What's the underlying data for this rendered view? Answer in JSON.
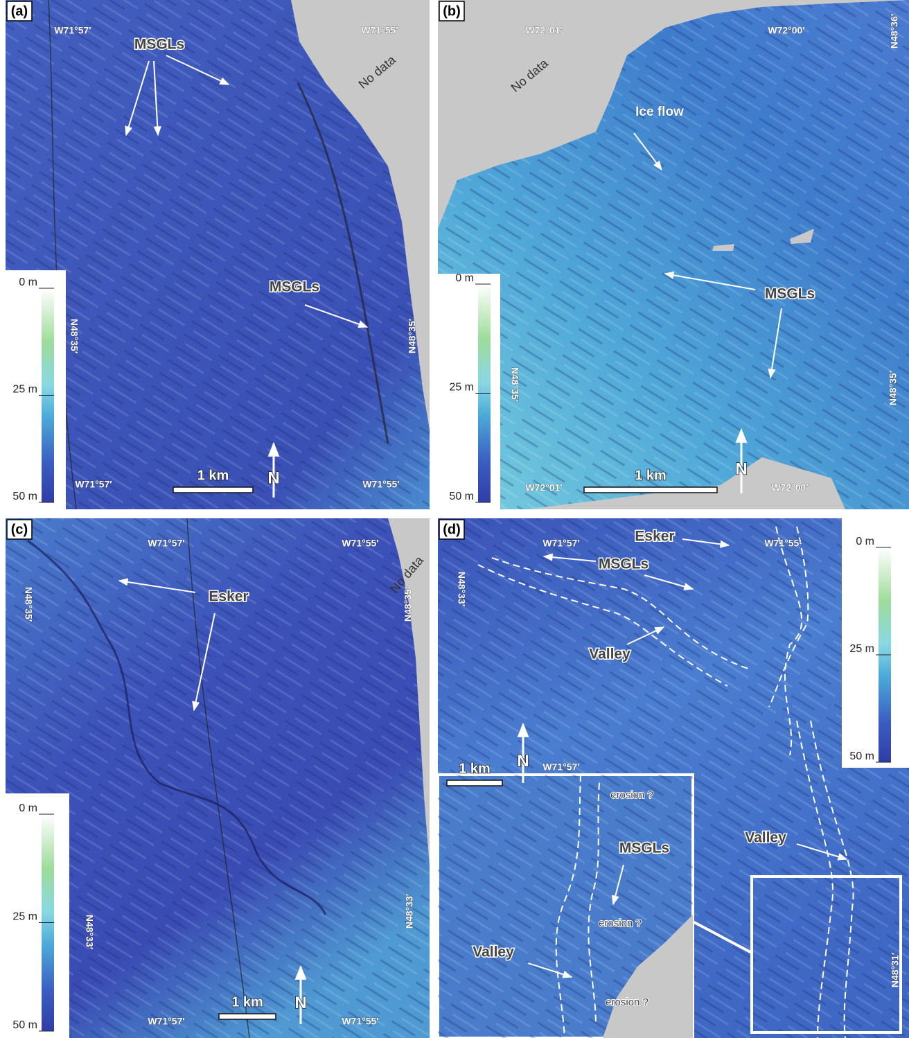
{
  "panels": [
    {
      "label": "(a)",
      "no_data": "No data",
      "coordinates": [
        "W71°57′",
        "W71°55′",
        "W71°57′",
        "W71°55′",
        "N48°35′",
        "N48°35′"
      ],
      "annotations": [
        "MSGLs",
        "MSGLs"
      ],
      "scale_bar": "1 km",
      "north": "N",
      "depth_scale": {
        "ylim": [
          0,
          50
        ],
        "ticks": [
          {
            "value": 0,
            "label": "0 m"
          },
          {
            "value": 25,
            "label": "25 m"
          },
          {
            "value": 50,
            "label": "50 m"
          }
        ]
      }
    },
    {
      "label": "(b)",
      "no_data": "No data",
      "coordinates": [
        "W72°01′",
        "W72°00′",
        "N48°36′",
        "N48°35′",
        "N48°35′",
        "W72°01′",
        "W72°00′"
      ],
      "annotations": [
        "Ice flow",
        "MSGLs"
      ],
      "scale_bar": "1 km",
      "north": "N",
      "depth_scale": {
        "ylim": [
          0,
          50
        ],
        "ticks": [
          {
            "value": 0,
            "label": "0 m"
          },
          {
            "value": 25,
            "label": "25 m"
          },
          {
            "value": 50,
            "label": "50 m"
          }
        ]
      }
    },
    {
      "label": "(c)",
      "no_data": "No data",
      "coordinates": [
        "W71°57′",
        "W71°55′",
        "N48°35′",
        "N48°35′",
        "N48°33′",
        "N48°33′",
        "W71°57′",
        "W71°55′"
      ],
      "annotations": [
        "Esker"
      ],
      "scale_bar": "1 km",
      "north": "N",
      "depth_scale": {
        "ylim": [
          0,
          50
        ],
        "ticks": [
          {
            "value": 0,
            "label": "0 m"
          },
          {
            "value": 25,
            "label": "25 m"
          },
          {
            "value": 50,
            "label": "50 m"
          }
        ]
      }
    },
    {
      "label": "(d)",
      "coordinates": [
        "W71°57′",
        "W71°55′",
        "N48°33′",
        "W71°57′",
        "N48°31′"
      ],
      "annotations": [
        "Esker",
        "MSGLs",
        "Valley",
        "Valley",
        "erosion ?",
        "MSGLs",
        "erosion ?",
        "Valley",
        "erosion ?"
      ],
      "scale_bar": "1 km",
      "north": "N",
      "depth_scale": {
        "ylim": [
          0,
          50
        ],
        "ticks": [
          {
            "value": 0,
            "label": "0 m"
          },
          {
            "value": 25,
            "label": "25 m"
          },
          {
            "value": 50,
            "label": "50 m"
          }
        ]
      }
    }
  ]
}
